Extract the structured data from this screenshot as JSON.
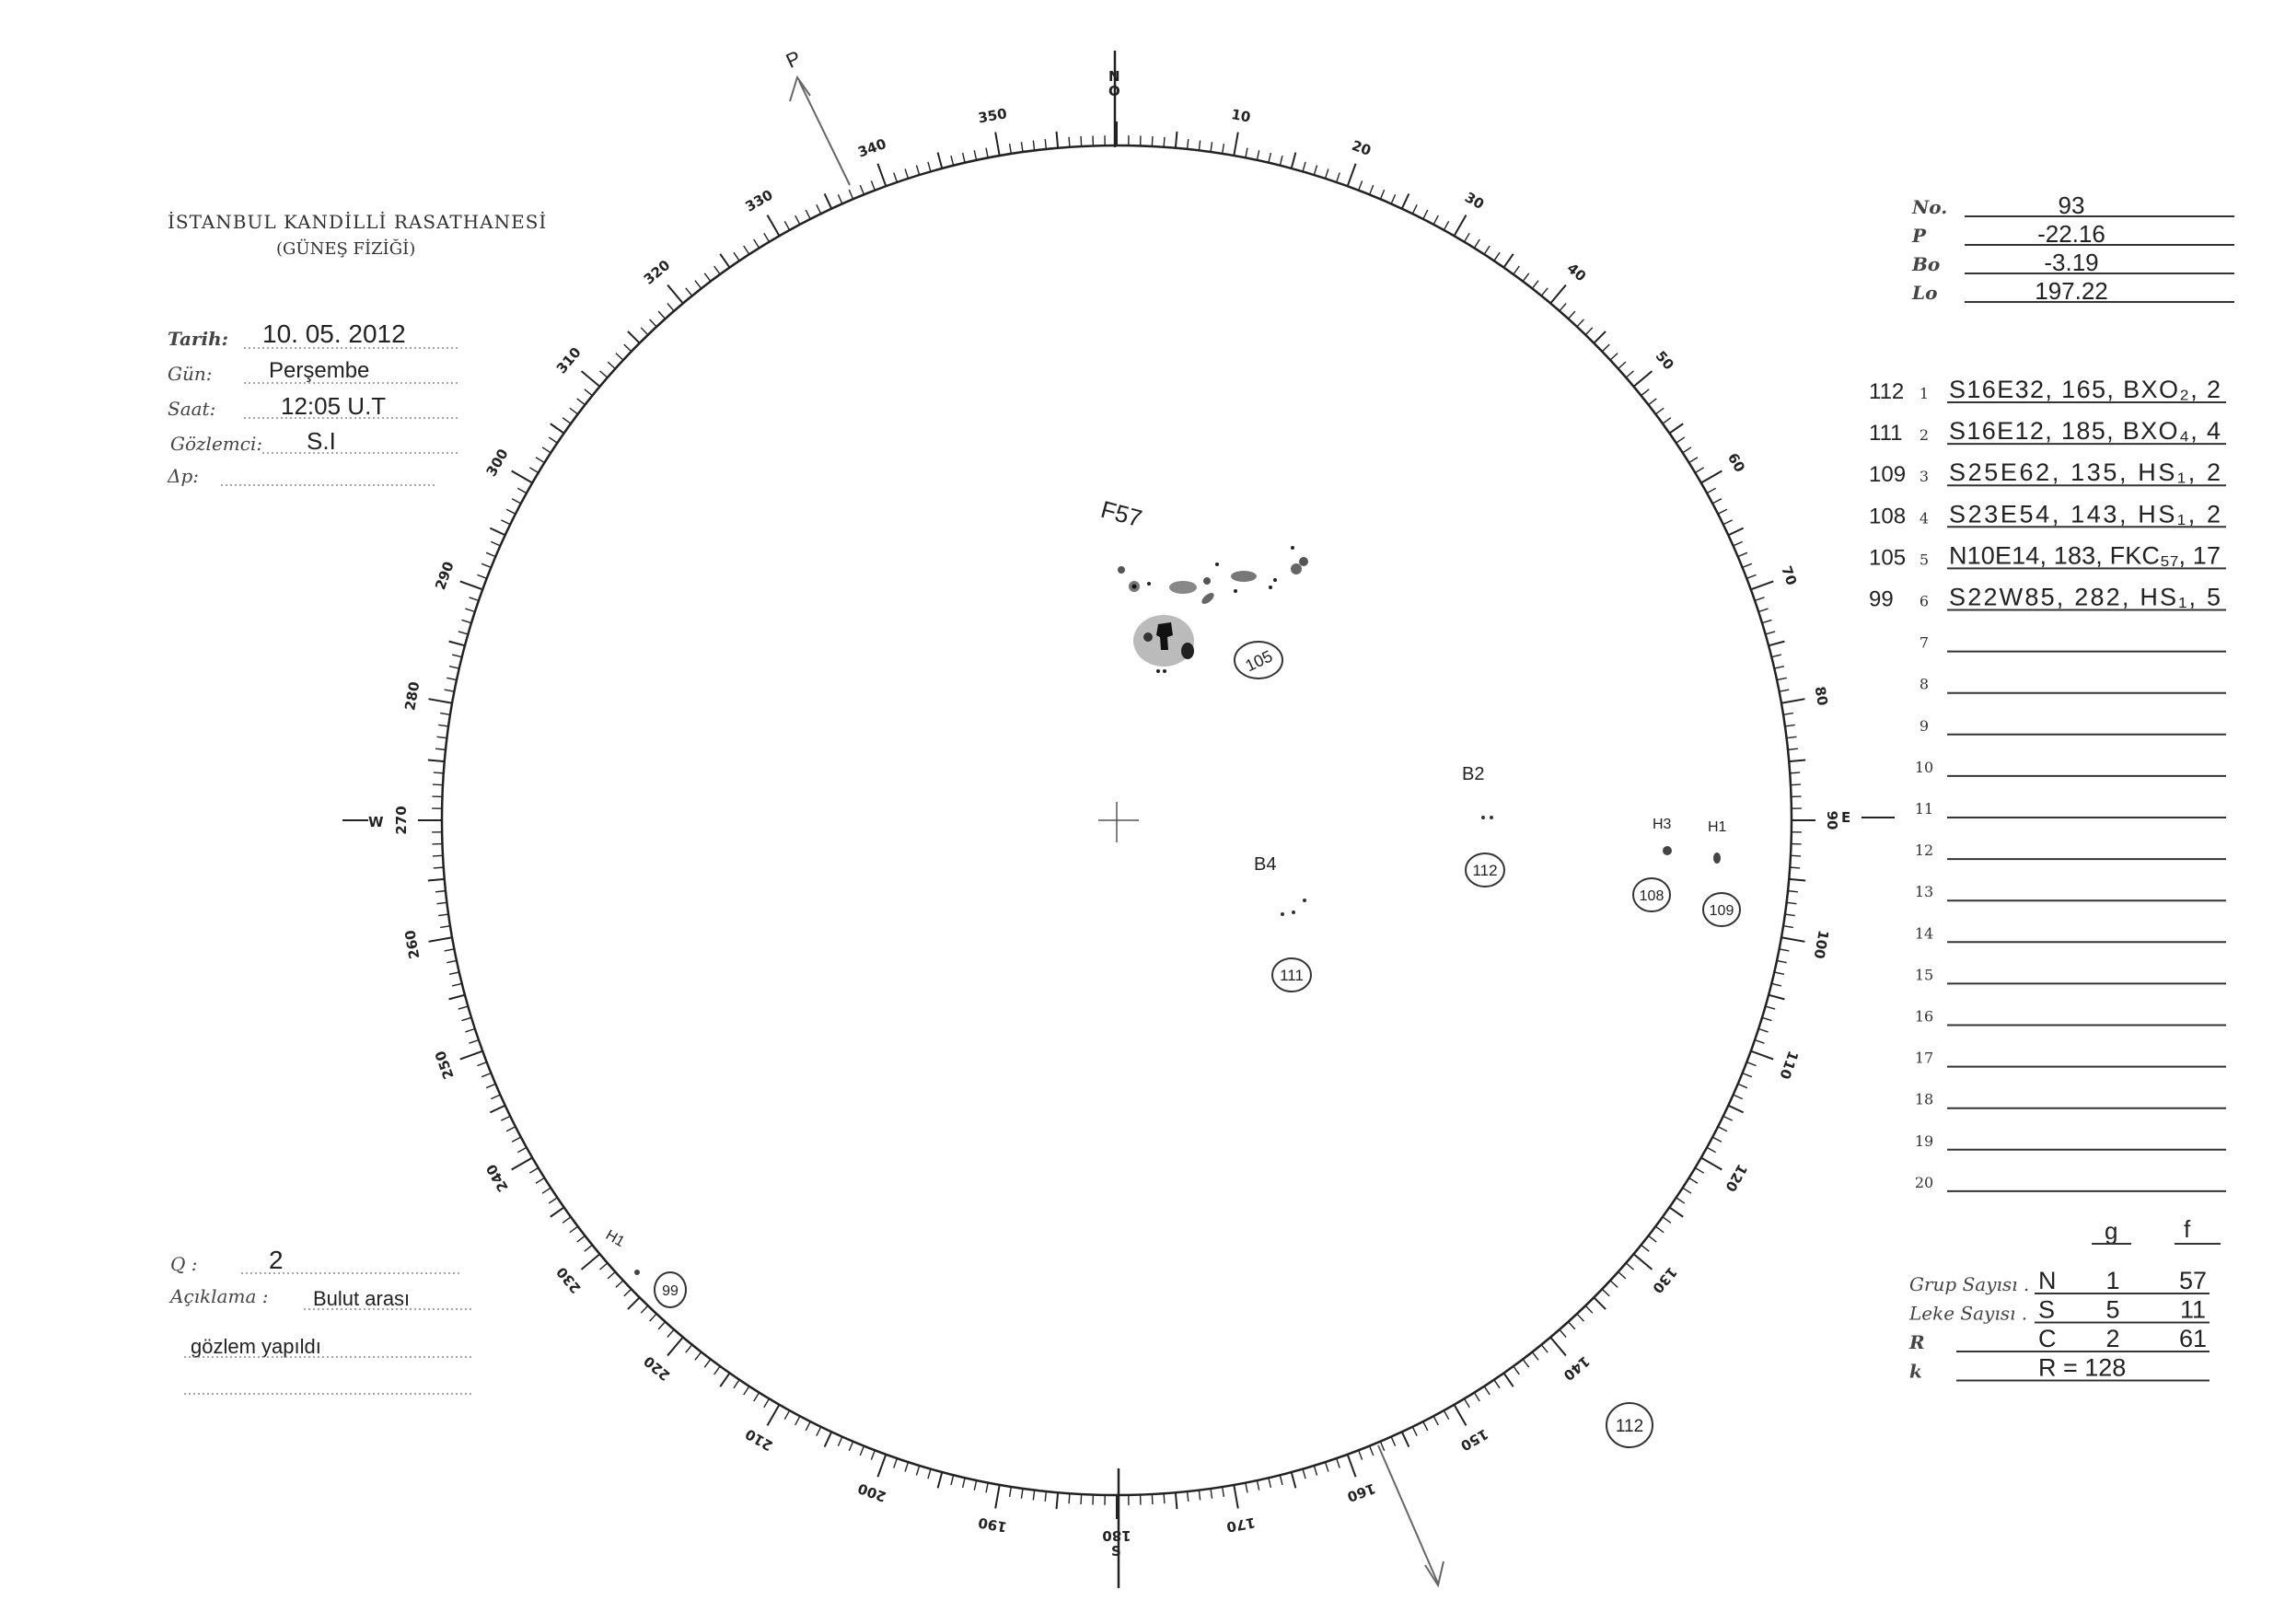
{
  "header": {
    "title": "İSTANBUL KANDİLLİ RASATHANESİ",
    "subtitle": "(GÜNEŞ FİZİĞİ)"
  },
  "form": {
    "date_label": "Tarih:",
    "date_value": "10. 05. 2012",
    "day_label": "Gün:",
    "day_value": "Perşembe",
    "time_label": "Saat:",
    "time_value": "12:05 U.T",
    "observer_label": "Gözlemci:",
    "observer_value": "S.I",
    "dp_label": "Δp:",
    "dp_value": ""
  },
  "params": [
    {
      "label": "No.",
      "value": "93"
    },
    {
      "label": "P",
      "value": "-22.16"
    },
    {
      "label": "Bo",
      "value": "-3.19"
    },
    {
      "label": "Lo",
      "value": "197.22"
    }
  ],
  "groups": [
    {
      "n": "1",
      "group": "112",
      "entry": "S16E32, 165, BXO₂, 2"
    },
    {
      "n": "2",
      "group": "111",
      "entry": "S16E12, 185, BXO₄, 4"
    },
    {
      "n": "3",
      "group": "109",
      "entry": "S25E62, 135, HS₁, 2"
    },
    {
      "n": "4",
      "group": "108",
      "entry": "S23E54, 143, HS₁, 2"
    },
    {
      "n": "5",
      "group": "105",
      "entry": "N10E14, 183, FKC₅₇, 17"
    },
    {
      "n": "6",
      "group": "99",
      "entry": "S22W85, 282, HS₁, 5"
    },
    {
      "n": "7",
      "group": "",
      "entry": ""
    },
    {
      "n": "8",
      "group": "",
      "entry": ""
    },
    {
      "n": "9",
      "group": "",
      "entry": ""
    },
    {
      "n": "10",
      "group": "",
      "entry": ""
    },
    {
      "n": "11",
      "group": "",
      "entry": ""
    },
    {
      "n": "12",
      "group": "",
      "entry": ""
    },
    {
      "n": "13",
      "group": "",
      "entry": ""
    },
    {
      "n": "14",
      "group": "",
      "entry": ""
    },
    {
      "n": "15",
      "group": "",
      "entry": ""
    },
    {
      "n": "16",
      "group": "",
      "entry": ""
    },
    {
      "n": "17",
      "group": "",
      "entry": ""
    },
    {
      "n": "18",
      "group": "",
      "entry": ""
    },
    {
      "n": "19",
      "group": "",
      "entry": ""
    },
    {
      "n": "20",
      "group": "",
      "entry": ""
    }
  ],
  "totals": {
    "col_g": "g",
    "col_f": "f",
    "rows": [
      {
        "label": "Grup Sayısı .",
        "key": "N",
        "g": "1",
        "f": "57"
      },
      {
        "label": "Leke Sayısı .",
        "key": "S",
        "g": "5",
        "f": "11"
      },
      {
        "label": "R",
        "key": "C",
        "g": "2",
        "f": "61"
      },
      {
        "label": "k",
        "key": "R = 128",
        "g": "",
        "f": ""
      }
    ]
  },
  "notes": {
    "q_label": "Q :",
    "q_value": "2",
    "comment_label": "Açıklama :",
    "comment_line1": "Bulut arası",
    "comment_line2": "gözlem yapıldı"
  },
  "disk": {
    "north": "N",
    "north2": "O",
    "south": "S",
    "west": "W",
    "east": "E",
    "p_axis": "P",
    "scale_labels_deg": [
      10,
      20,
      30,
      40,
      50,
      60,
      70,
      80,
      90,
      100,
      110,
      120,
      130,
      140,
      150,
      160,
      170,
      180,
      190,
      200,
      210,
      220,
      230,
      240,
      250,
      260,
      270,
      280,
      290,
      300,
      310,
      320,
      330,
      340,
      350
    ],
    "spot_labels": [
      "F57",
      "B2",
      "H3",
      "H1",
      "B4",
      "H1"
    ],
    "group_circles": [
      "105",
      "112",
      "108",
      "109",
      "111",
      "99",
      "112"
    ]
  }
}
